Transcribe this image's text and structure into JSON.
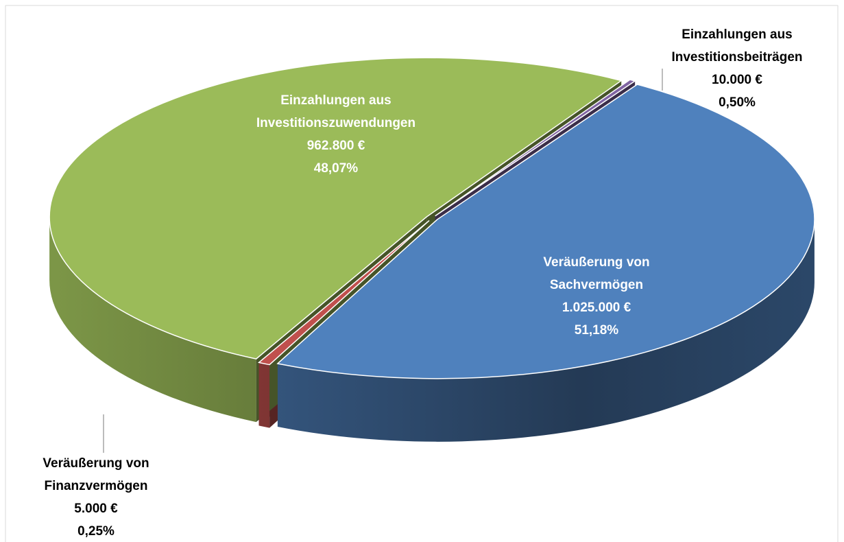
{
  "chart_data": {
    "type": "pie3d",
    "categories": [
      "Einzahlungen aus Investitionszuwendungen",
      "Einzahlungen aus Investitionsbeiträgen",
      "Veräußerung von Sachvermögen",
      "Veräußerung von Finanzvermögen"
    ],
    "values": [
      962800,
      10000,
      1025000,
      5000
    ],
    "value_labels": [
      "962.800 €",
      "10.000 €",
      "1.025.000 €",
      "5.000 €"
    ],
    "percentages": [
      48.07,
      0.5,
      51.18,
      0.25
    ],
    "percentage_labels": [
      "48,07%",
      "0,50%",
      "51,18%",
      "0,25%"
    ],
    "colors": [
      "#4f81bd",
      "#c0504d",
      "#9bbb59",
      "#8064a2"
    ]
  }
}
